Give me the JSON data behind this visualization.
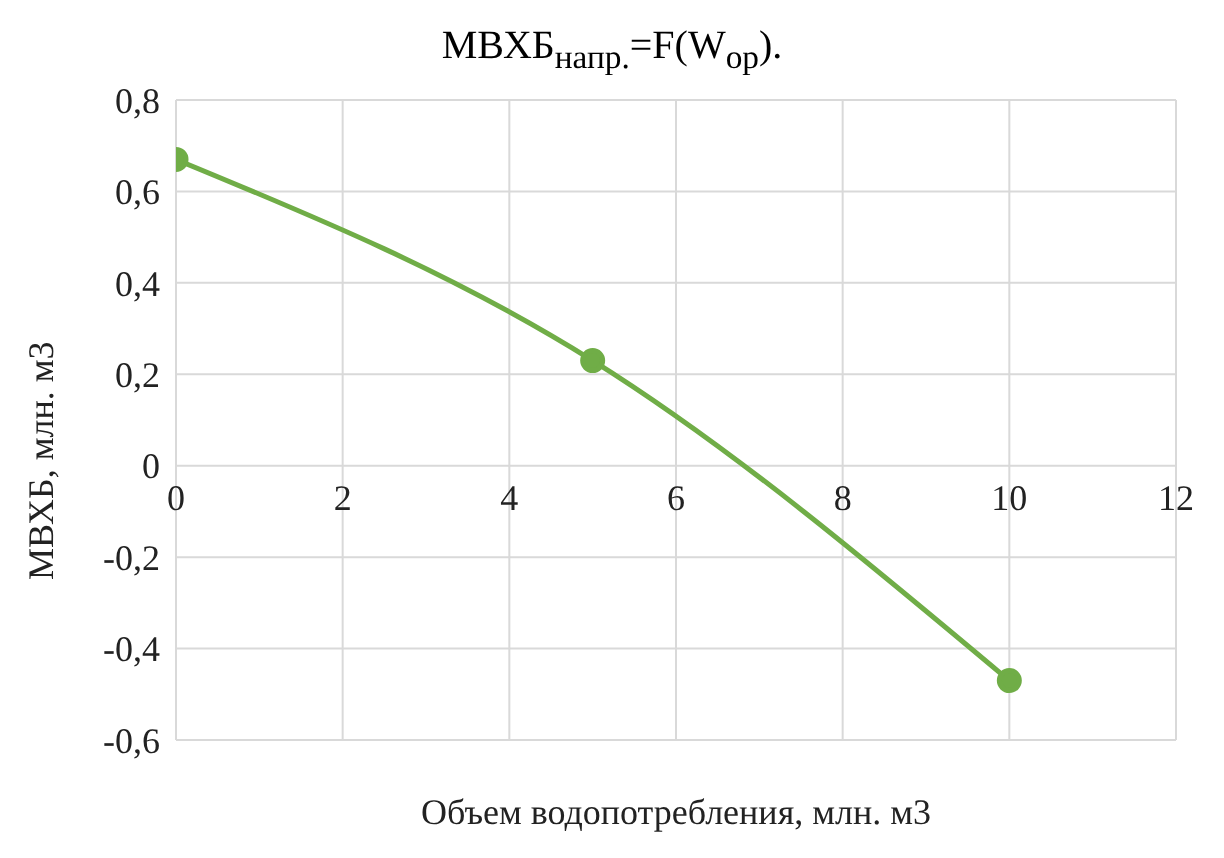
{
  "chart_data": {
    "type": "line",
    "title": "МВХБ$_{напр.}$=F(W$_{ор}$).",
    "xlabel": "Объем водопотребления, млн. м3",
    "ylabel": "МВХБ, млн. м3",
    "x": [
      0,
      5,
      10
    ],
    "series": [
      {
        "color": "#70ad47",
        "values": [
          0.67,
          0.23,
          -0.47
        ]
      }
    ],
    "xlim": [
      0,
      12
    ],
    "xticks": [
      0,
      2,
      4,
      6,
      8,
      10,
      12
    ],
    "ylim": [
      -0.6,
      0.8
    ],
    "yticks": [
      {
        "value": -0.6,
        "label": "-0,6"
      },
      {
        "value": -0.4,
        "label": "-0,4"
      },
      {
        "value": -0.2,
        "label": "-0,2"
      },
      0,
      {
        "value": 0.2,
        "label": "0,2"
      },
      {
        "value": 0.4,
        "label": "0,4"
      },
      {
        "value": 0.6,
        "label": "0,6"
      },
      {
        "value": 0.8,
        "label": "0,8"
      }
    ],
    "grid": true,
    "legend": false,
    "marker": "circle",
    "line_style": "solid"
  }
}
